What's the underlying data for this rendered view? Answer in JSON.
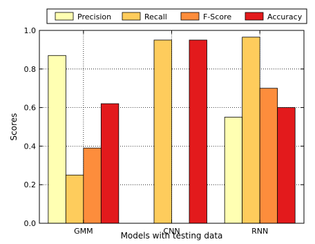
{
  "chart_data": {
    "type": "bar",
    "categories": [
      "GMM",
      "CNN",
      "RNN"
    ],
    "series": [
      {
        "name": "Precision",
        "values": [
          0.87,
          0.0,
          0.55
        ],
        "color": "#ffffb2"
      },
      {
        "name": "Recall",
        "values": [
          0.25,
          0.95,
          0.965
        ],
        "color": "#fecc5c"
      },
      {
        "name": "F-Score",
        "values": [
          0.39,
          0.0,
          0.7
        ],
        "color": "#fd8d3c"
      },
      {
        "name": "Accuracy",
        "values": [
          0.62,
          0.95,
          0.6
        ],
        "color": "#e31a1c"
      }
    ],
    "xlabel": "Models with testing data",
    "ylabel": "Scores",
    "ylim": [
      0,
      1.0
    ],
    "yticks": [
      "0.0",
      "0.2",
      "0.4",
      "0.6",
      "0.8",
      "1.0"
    ],
    "grid": true,
    "legend_position": "top"
  }
}
